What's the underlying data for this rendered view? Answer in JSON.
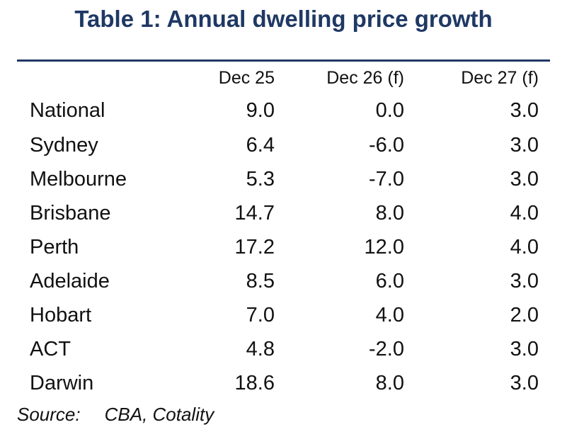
{
  "title": "Table 1: Annual dwelling price growth",
  "columns": [
    "Dec 25",
    "Dec 26 (f)",
    "Dec 27 (f)"
  ],
  "rows": [
    {
      "region": "National",
      "values": [
        "9.0",
        "0.0",
        "3.0"
      ]
    },
    {
      "region": "Sydney",
      "values": [
        "6.4",
        "-6.0",
        "3.0"
      ]
    },
    {
      "region": "Melbourne",
      "values": [
        "5.3",
        "-7.0",
        "3.0"
      ]
    },
    {
      "region": "Brisbane",
      "values": [
        "14.7",
        "8.0",
        "4.0"
      ]
    },
    {
      "region": "Perth",
      "values": [
        "17.2",
        "12.0",
        "4.0"
      ]
    },
    {
      "region": "Adelaide",
      "values": [
        "8.5",
        "6.0",
        "3.0"
      ]
    },
    {
      "region": "Hobart",
      "values": [
        "7.0",
        "4.0",
        "2.0"
      ]
    },
    {
      "region": "ACT",
      "values": [
        "4.8",
        "-2.0",
        "3.0"
      ]
    },
    {
      "region": "Darwin",
      "values": [
        "18.6",
        "8.0",
        "3.0"
      ]
    }
  ],
  "source": {
    "label": "Source:",
    "text": "CBA, Cotality"
  },
  "colors": {
    "title": "#1f3864",
    "rule": "#1f3864",
    "text": "#111111"
  }
}
